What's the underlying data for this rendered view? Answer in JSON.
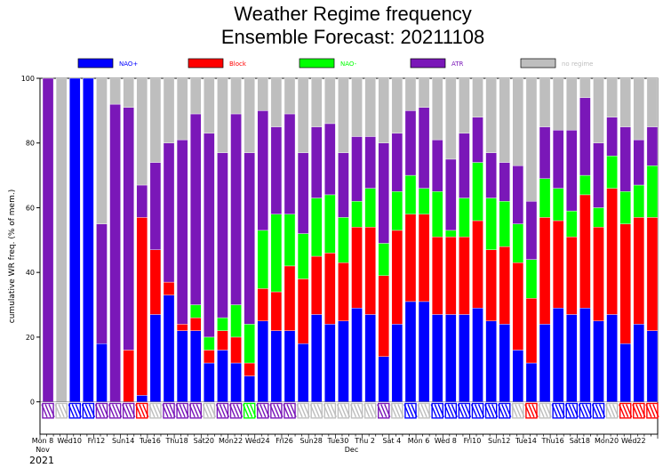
{
  "chart_data": {
    "type": "bar",
    "stacked": true,
    "title": "Weather Regime frequency",
    "subtitle": "Ensemble Forecast: 20211108",
    "ylabel": "cumulative WR freq. (% of mem.)",
    "ylim": [
      -10,
      100
    ],
    "yticks": [
      0,
      20,
      40,
      60,
      80,
      100
    ],
    "colors": {
      "NAO+": "#0000ff",
      "Block": "#ff0000",
      "NAO-": "#00ff00",
      "ATR": "#7a17b8",
      "no regime": "#bebebe",
      "weekend_label": "#ff0000",
      "weekday_label": "#000000"
    },
    "legend": [
      {
        "name": "NAO+",
        "color": "#0000ff"
      },
      {
        "name": "Block",
        "color": "#ff0000"
      },
      {
        "name": "NAO-",
        "color": "#00ff00"
      },
      {
        "name": "ATR",
        "color": "#7a17b8"
      },
      {
        "name": "no regime",
        "color": "#bebebe"
      }
    ],
    "series_order": [
      "NAO+",
      "Block",
      "NAO-",
      "ATR",
      "no regime"
    ],
    "x_tick_labels": [
      {
        "label": "Mon 8",
        "index": 0,
        "weekend": false
      },
      {
        "label": "Wed10",
        "index": 4,
        "weekend": false
      },
      {
        "label": "Fri12",
        "index": 8,
        "weekend": false
      },
      {
        "label": "Sun14",
        "index": 12,
        "weekend": true
      },
      {
        "label": "Tue16",
        "index": 16,
        "weekend": false
      },
      {
        "label": "Thu18",
        "index": 20,
        "weekend": false
      },
      {
        "label": "Sat20",
        "index": 24,
        "weekend": false
      },
      {
        "label": "Mon22",
        "index": 28,
        "weekend": false
      },
      {
        "label": "Wed24",
        "index": 32,
        "weekend": false
      },
      {
        "label": "Fri26",
        "index": 36,
        "weekend": false
      },
      {
        "label": "Sun28",
        "index": 40,
        "weekend": true
      },
      {
        "label": "Tue30",
        "index": 44,
        "weekend": false
      },
      {
        "label": "Thu 2",
        "index": 48,
        "weekend": false
      },
      {
        "label": "Sat 4",
        "index": 52,
        "weekend": false
      },
      {
        "label": "Mon 6",
        "index": 56,
        "weekend": false
      },
      {
        "label": "Wed 8",
        "index": 60,
        "weekend": false
      },
      {
        "label": "Fri10",
        "index": 64,
        "weekend": false
      },
      {
        "label": "Sun12",
        "index": 68,
        "weekend": true
      },
      {
        "label": "Tue14",
        "index": 72,
        "weekend": false
      },
      {
        "label": "Thu16",
        "index": 76,
        "weekend": false
      },
      {
        "label": "Sat18",
        "index": 80,
        "weekend": false
      },
      {
        "label": "Mon20",
        "index": 84,
        "weekend": false
      },
      {
        "label": "Wed22",
        "index": 88,
        "weekend": false
      }
    ],
    "month_labels": [
      {
        "label": "Nov",
        "index": 0
      },
      {
        "label": "Dec",
        "index": 46
      }
    ],
    "year_label": "2021",
    "bars": [
      {
        "t": 0,
        "NAO+": 0,
        "Block": 0,
        "NAO-": 0,
        "ATR": 100,
        "dominant": "ATR"
      },
      {
        "t": 1,
        "NAO+": 0,
        "Block": 0,
        "NAO-": 0,
        "ATR": 0,
        "dominant": "no regime"
      },
      {
        "t": 2,
        "NAO+": 100,
        "Block": 0,
        "NAO-": 0,
        "ATR": 0,
        "dominant": "NAO+"
      },
      {
        "t": 3,
        "NAO+": 100,
        "Block": 0,
        "NAO-": 0,
        "ATR": 0,
        "dominant": "NAO+"
      },
      {
        "t": 4,
        "NAO+": 18,
        "Block": 0,
        "NAO-": 0,
        "ATR": 37,
        "dominant": "ATR"
      },
      {
        "t": 5,
        "NAO+": 0,
        "Block": 0,
        "NAO-": 0,
        "ATR": 92,
        "dominant": "ATR"
      },
      {
        "t": 6,
        "NAO+": 0,
        "Block": 16,
        "NAO-": 0,
        "ATR": 75,
        "dominant": "ATR"
      },
      {
        "t": 7,
        "NAO+": 2,
        "Block": 55,
        "NAO-": 0,
        "ATR": 10,
        "dominant": "Block"
      },
      {
        "t": 8,
        "NAO+": 27,
        "Block": 20,
        "NAO-": 0,
        "ATR": 27,
        "dominant": "no regime"
      },
      {
        "t": 9,
        "NAO+": 33,
        "Block": 4,
        "NAO-": 0,
        "ATR": 43,
        "dominant": "ATR"
      },
      {
        "t": 10,
        "NAO+": 22,
        "Block": 2,
        "NAO-": 0,
        "ATR": 57,
        "dominant": "ATR"
      },
      {
        "t": 11,
        "NAO+": 22,
        "Block": 4,
        "NAO-": 4,
        "ATR": 59,
        "dominant": "ATR"
      },
      {
        "t": 12,
        "NAO+": 12,
        "Block": 4,
        "NAO-": 4,
        "ATR": 63,
        "dominant": "no regime"
      },
      {
        "t": 13,
        "NAO+": 16,
        "Block": 6,
        "NAO-": 4,
        "ATR": 51,
        "dominant": "ATR"
      },
      {
        "t": 14,
        "NAO+": 12,
        "Block": 8,
        "NAO-": 10,
        "ATR": 59,
        "dominant": "ATR"
      },
      {
        "t": 15,
        "NAO+": 8,
        "Block": 4,
        "NAO-": 12,
        "ATR": 53,
        "dominant": "NAO-"
      },
      {
        "t": 16,
        "NAO+": 25,
        "Block": 10,
        "NAO-": 18,
        "ATR": 37,
        "dominant": "ATR"
      },
      {
        "t": 17,
        "NAO+": 22,
        "Block": 12,
        "NAO-": 24,
        "ATR": 27,
        "dominant": "ATR"
      },
      {
        "t": 18,
        "NAO+": 22,
        "Block": 20,
        "NAO-": 16,
        "ATR": 31,
        "dominant": "ATR"
      },
      {
        "t": 19,
        "NAO+": 18,
        "Block": 20,
        "NAO-": 14,
        "ATR": 25,
        "dominant": "no regime"
      },
      {
        "t": 20,
        "NAO+": 27,
        "Block": 18,
        "NAO-": 18,
        "ATR": 22,
        "dominant": "no regime"
      },
      {
        "t": 21,
        "NAO+": 24,
        "Block": 22,
        "NAO-": 18,
        "ATR": 22,
        "dominant": "no regime"
      },
      {
        "t": 22,
        "NAO+": 25,
        "Block": 18,
        "NAO-": 14,
        "ATR": 20,
        "dominant": "no regime"
      },
      {
        "t": 23,
        "NAO+": 29,
        "Block": 25,
        "NAO-": 8,
        "ATR": 20,
        "dominant": "no regime"
      },
      {
        "t": 24,
        "NAO+": 27,
        "Block": 27,
        "NAO-": 12,
        "ATR": 16,
        "dominant": "no regime"
      },
      {
        "t": 25,
        "NAO+": 14,
        "Block": 25,
        "NAO-": 10,
        "ATR": 31,
        "dominant": "ATR"
      },
      {
        "t": 26,
        "NAO+": 24,
        "Block": 29,
        "NAO-": 12,
        "ATR": 18,
        "dominant": "no regime"
      },
      {
        "t": 27,
        "NAO+": 31,
        "Block": 27,
        "NAO-": 12,
        "ATR": 20,
        "dominant": "NAO+"
      },
      {
        "t": 28,
        "NAO+": 31,
        "Block": 27,
        "NAO-": 8,
        "ATR": 25,
        "dominant": "no regime"
      },
      {
        "t": 29,
        "NAO+": 27,
        "Block": 24,
        "NAO-": 14,
        "ATR": 16,
        "dominant": "NAO+"
      },
      {
        "t": 30,
        "NAO+": 27,
        "Block": 24,
        "NAO-": 2,
        "ATR": 22,
        "dominant": "NAO+"
      },
      {
        "t": 31,
        "NAO+": 27,
        "Block": 24,
        "NAO-": 12,
        "ATR": 20,
        "dominant": "NAO+"
      },
      {
        "t": 32,
        "NAO+": 29,
        "Block": 27,
        "NAO-": 18,
        "ATR": 14,
        "dominant": "NAO+"
      },
      {
        "t": 33,
        "NAO+": 25,
        "Block": 22,
        "NAO-": 16,
        "ATR": 14,
        "dominant": "NAO+"
      },
      {
        "t": 34,
        "NAO+": 24,
        "Block": 24,
        "NAO-": 14,
        "ATR": 12,
        "dominant": "NAO+"
      },
      {
        "t": 35,
        "NAO+": 16,
        "Block": 27,
        "NAO-": 12,
        "ATR": 18,
        "dominant": "no regime"
      },
      {
        "t": 36,
        "NAO+": 12,
        "Block": 20,
        "NAO-": 12,
        "ATR": 18,
        "dominant": "Block"
      },
      {
        "t": 37,
        "NAO+": 24,
        "Block": 33,
        "NAO-": 12,
        "ATR": 16,
        "dominant": "no regime"
      },
      {
        "t": 38,
        "NAO+": 29,
        "Block": 27,
        "NAO-": 10,
        "ATR": 18,
        "dominant": "NAO+"
      },
      {
        "t": 39,
        "NAO+": 27,
        "Block": 24,
        "NAO-": 8,
        "ATR": 25,
        "dominant": "NAO+"
      },
      {
        "t": 40,
        "NAO+": 29,
        "Block": 35,
        "NAO-": 6,
        "ATR": 24,
        "dominant": "NAO+"
      },
      {
        "t": 41,
        "NAO+": 25,
        "Block": 29,
        "NAO-": 6,
        "ATR": 20,
        "dominant": "NAO+"
      },
      {
        "t": 42,
        "NAO+": 27,
        "Block": 39,
        "NAO-": 10,
        "ATR": 12,
        "dominant": "no regime"
      },
      {
        "t": 43,
        "NAO+": 18,
        "Block": 37,
        "NAO-": 10,
        "ATR": 20,
        "dominant": "Block"
      },
      {
        "t": 44,
        "NAO+": 24,
        "Block": 33,
        "NAO-": 10,
        "ATR": 14,
        "dominant": "Block"
      },
      {
        "t": 45,
        "NAO+": 22,
        "Block": 35,
        "NAO-": 16,
        "ATR": 12,
        "dominant": "Block"
      }
    ]
  }
}
